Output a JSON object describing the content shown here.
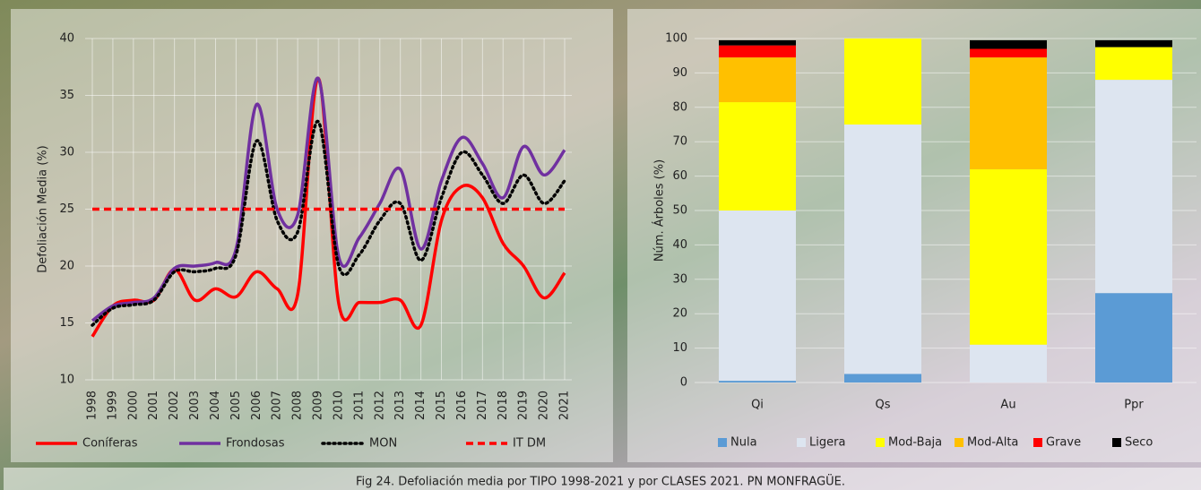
{
  "chart_data": [
    {
      "type": "line",
      "y_label": "Defoliación Media (%)",
      "categories": [
        "1998",
        "1999",
        "2000",
        "2001",
        "2002",
        "2003",
        "2004",
        "2005",
        "2006",
        "2007",
        "2008",
        "2009",
        "2010",
        "2011",
        "2012",
        "2013",
        "2014",
        "2015",
        "2016",
        "2017",
        "2018",
        "2019",
        "2020",
        "2021"
      ],
      "ylim": [
        10,
        40
      ],
      "yticks": [
        10,
        15,
        20,
        25,
        30,
        35,
        40
      ],
      "grid": true,
      "series": [
        {
          "name": "Coníferas",
          "color": "#ff0000",
          "style": "solid",
          "values": [
            13.8,
            16.5,
            17,
            17,
            19.7,
            17,
            18,
            17.3,
            19.5,
            18,
            17.5,
            36.5,
            16.7,
            16.8,
            16.8,
            17,
            14.8,
            24,
            27,
            26,
            22,
            20,
            17.2,
            19.4
          ]
        },
        {
          "name": "Frondosas",
          "color": "#7030a0",
          "style": "solid",
          "values": [
            15.2,
            16.5,
            16.8,
            17.2,
            19.8,
            20,
            20.3,
            21.5,
            34.2,
            25,
            24.5,
            36.5,
            20.8,
            22.5,
            25.5,
            28.5,
            21.5,
            27.5,
            31.3,
            29,
            26,
            30.5,
            28,
            30.2
          ]
        },
        {
          "name": "MON",
          "color": "#000000",
          "style": "dotted",
          "values": [
            14.8,
            16.3,
            16.6,
            17,
            19.5,
            19.5,
            19.8,
            21,
            31,
            24,
            23,
            32.7,
            20,
            21,
            24,
            25.5,
            20.5,
            26,
            30,
            28,
            25.5,
            28,
            25.5,
            27.5
          ]
        },
        {
          "name": "IT DM",
          "color": "#ff0000",
          "style": "dashed",
          "values": [
            25,
            25,
            25,
            25,
            25,
            25,
            25,
            25,
            25,
            25,
            25,
            25,
            25,
            25,
            25,
            25,
            25,
            25,
            25,
            25,
            25,
            25,
            25,
            25
          ]
        }
      ]
    },
    {
      "type": "stacked-bar",
      "y_label": "Núm. Árboles (%)",
      "categories": [
        "Qi",
        "Qs",
        "Au",
        "Ppr"
      ],
      "ylim": [
        0,
        100
      ],
      "yticks": [
        0,
        10,
        20,
        30,
        40,
        50,
        60,
        70,
        80,
        90,
        100
      ],
      "grid": true,
      "series": [
        {
          "name": "Nula",
          "color": "#5b9bd5",
          "values": [
            0.5,
            2.5,
            0,
            26
          ]
        },
        {
          "name": "Ligera",
          "color": "#dde5f0",
          "values": [
            49.5,
            72.5,
            11,
            62
          ]
        },
        {
          "name": "Mod-Baja",
          "color": "#ffff00",
          "values": [
            31.5,
            25,
            51,
            9.5
          ]
        },
        {
          "name": "Mod-Alta",
          "color": "#ffc000",
          "values": [
            13,
            0,
            32.5,
            0
          ]
        },
        {
          "name": "Grave",
          "color": "#ff0000",
          "values": [
            3.5,
            0,
            2.5,
            0
          ]
        },
        {
          "name": "Seco",
          "color": "#000000",
          "values": [
            1.5,
            0,
            2.5,
            2
          ]
        }
      ]
    }
  ],
  "caption": "Fig 24. Defoliación media por TIPO 1998-2021 y por CLASES 2021. PN MONFRAGÜE."
}
